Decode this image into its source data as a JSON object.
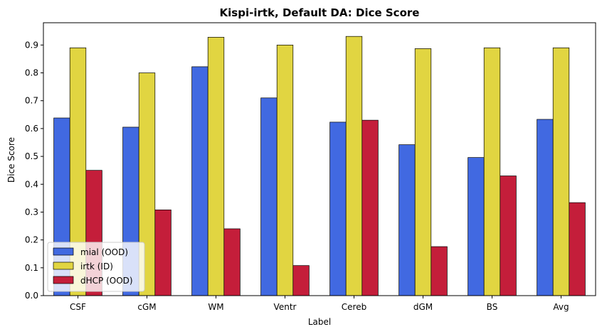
{
  "chart_data": {
    "type": "bar",
    "title": "Kispi-irtk, Default DA: Dice Score",
    "xlabel": "Label",
    "ylabel": "Dice Score",
    "ylim": [
      0,
      0.98
    ],
    "yticks": [
      "0.0",
      "0.1",
      "0.2",
      "0.3",
      "0.4",
      "0.5",
      "0.6",
      "0.7",
      "0.8",
      "0.9"
    ],
    "categories": [
      "CSF",
      "cGM",
      "WM",
      "Ventr",
      "Cereb",
      "dGM",
      "BS",
      "Avg"
    ],
    "grid": false,
    "legend_position": "lower-left",
    "series": [
      {
        "name": "mial (OOD)",
        "color": "#4169e1",
        "values": [
          0.638,
          0.605,
          0.822,
          0.71,
          0.623,
          0.542,
          0.496,
          0.633
        ]
      },
      {
        "name": "irtk (ID)",
        "color": "#e1d541",
        "values": [
          0.89,
          0.8,
          0.928,
          0.9,
          0.931,
          0.887,
          0.89,
          0.89
        ]
      },
      {
        "name": "dHCP (OOD)",
        "color": "#c41e3a",
        "values": [
          0.45,
          0.308,
          0.24,
          0.108,
          0.63,
          0.176,
          0.43,
          0.334
        ]
      }
    ]
  }
}
